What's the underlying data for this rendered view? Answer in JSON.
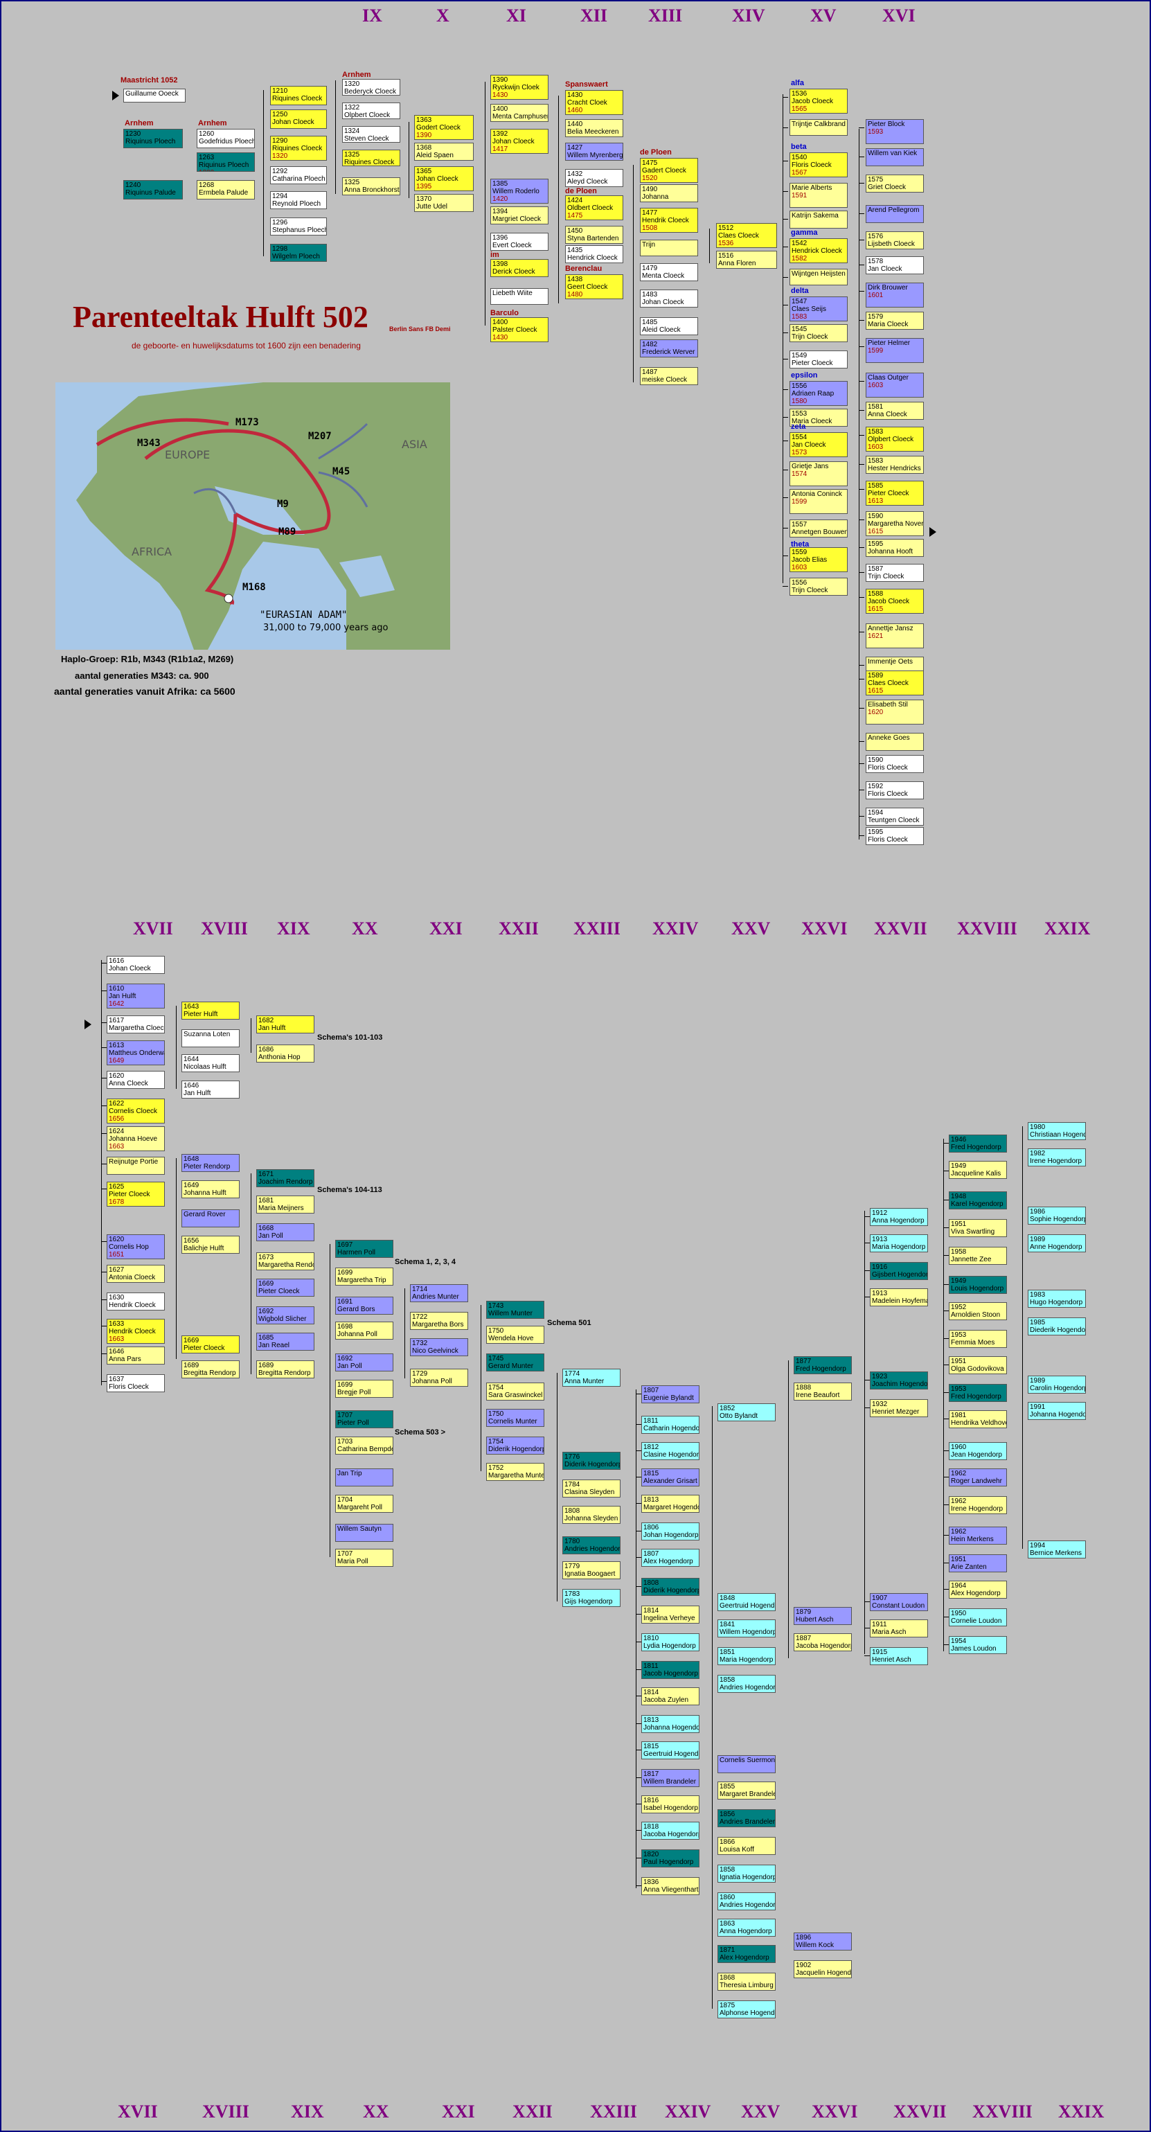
{
  "top_gens": [
    "IX",
    "X",
    "XI",
    "XII",
    "XIII",
    "XIV",
    "XV",
    "XVI"
  ],
  "mid_gens": [
    "XVII",
    "XVIII",
    "XIX",
    "XX",
    "XXI",
    "XXII",
    "XXIII",
    "XXIV",
    "XXV",
    "XXVI",
    "XXVII",
    "XXVIII",
    "XXIX"
  ],
  "bottom_gens": [
    "XVII",
    "XVIII",
    "XIX",
    "XX",
    "XXI",
    "XXII",
    "XXIII",
    "XXIV",
    "XXV",
    "XXVI",
    "XXVII",
    "XXVIII",
    "XXIX"
  ],
  "title": "Parenteeltak Hulft 502",
  "subtitle": "de geboorte- en huwelijksdatums tot 1600 zijn een benadering",
  "font_note": "Berlin Sans FB Demi",
  "map": {
    "labels": [
      "M173",
      "M343",
      "M207",
      "EUROPE",
      "ASIA",
      "M45",
      "M9",
      "M89",
      "AFRICA",
      "M168"
    ],
    "adam_title": "\"EURASIAN ADAM\"",
    "adam_sub": "31,000 to 79,000 years ago"
  },
  "info": {
    "haplo": "Haplo-Groep: R1b, M343 (R1b1a2, M269)",
    "gen_m343": "aantal generaties M343: ca. 900",
    "gen_africa": "aantal generaties vanuit Afrika: ca 5600"
  },
  "place_labels": [
    "Maastricht 1052",
    "Arnhem",
    "Arnhem",
    "Arnhem",
    "Spanswaert",
    "de Ploen",
    "de Ploen",
    "Berenclau",
    "Barculo",
    "im"
  ],
  "greek_labels": [
    "alfa",
    "beta",
    "gamma",
    "delta",
    "epsilon",
    "zeta",
    "theta"
  ],
  "schemas": [
    "Schema's 101-103",
    "Schema's 104-113",
    "Schema 1, 2, 3, 4",
    "Schema 501",
    "Schema 503 >"
  ],
  "top_boxes": [
    [
      "",
      "Guillaume Ooeck",
      "",
      ""
    ],
    [
      "1230",
      "Riquinus Ploech",
      "",
      ""
    ],
    [
      "1260",
      "Godefridus Ploech",
      "",
      ""
    ],
    [
      "1263",
      "Riquinus Ploech",
      "1290",
      ""
    ],
    [
      "1240",
      "Riquinus Palude",
      "",
      ""
    ],
    [
      "1268",
      "Ermbela Palude",
      "",
      ""
    ],
    [
      "1210",
      "Riquines Cloeck",
      "",
      ""
    ],
    [
      "1250",
      "Johan Cloeck",
      "",
      ""
    ],
    [
      "1290",
      "Riquines Cloeck",
      "1320",
      ""
    ],
    [
      "1292",
      "Catharina Ploech",
      "",
      ""
    ],
    [
      "1294",
      "Reynold Ploech",
      "",
      ""
    ],
    [
      "1296",
      "Stephanus Ploech",
      "",
      ""
    ],
    [
      "1298",
      "Wilgelm Ploech",
      "",
      ""
    ],
    [
      "1320",
      "Bederyck Cloeck",
      "",
      ""
    ],
    [
      "1322",
      "Olpbert Cloeck",
      "",
      ""
    ],
    [
      "1324",
      "Steven Cloeck",
      "",
      ""
    ],
    [
      "1325",
      "Riquines Cloeck",
      "",
      ""
    ],
    [
      "1325",
      "Anna Bronckhorst",
      "",
      ""
    ],
    [
      "1363",
      "Godert Cloeck",
      "1390",
      ""
    ],
    [
      "1368",
      "Aleid Spaen",
      "",
      ""
    ],
    [
      "1365",
      "Johan Cloeck",
      "1395",
      ""
    ],
    [
      "1370",
      "Jutte Udel",
      "",
      ""
    ],
    [
      "1390",
      "Ryckwijn Cloek",
      "1430",
      ""
    ],
    [
      "1400",
      "Menta Camphusen",
      "",
      ""
    ],
    [
      "1392",
      "Johan Cloeck",
      "1417",
      ""
    ],
    [
      "1385",
      "Willem Roderlo",
      "1420",
      ""
    ],
    [
      "1394",
      "Margriet Cloeck",
      "",
      ""
    ],
    [
      "1396",
      "Evert Cloeck",
      "",
      ""
    ],
    [
      "1398",
      "Derick Cloeck",
      "",
      ""
    ],
    [
      "",
      "Liebeth Wiite",
      "",
      ""
    ],
    [
      "1400",
      "Palster Cloeck",
      "1430",
      ""
    ],
    [
      "1430",
      "Cracht Cloek",
      "1460",
      ""
    ],
    [
      "1440",
      "Belia Meeckeren",
      "",
      ""
    ],
    [
      "1427",
      "Willem Myrenberg",
      "",
      ""
    ],
    [
      "1432",
      "Aleyd Cloeck",
      "",
      ""
    ],
    [
      "1424",
      "Oldbert Cloeck",
      "1475",
      ""
    ],
    [
      "1450",
      "Styna Bartenden",
      "",
      ""
    ],
    [
      "1435",
      "Hendrick Cloeck",
      "",
      ""
    ],
    [
      "1438",
      "Geert Cloeck",
      "1480",
      ""
    ],
    [
      "1475",
      "Gadert Cloeck",
      "1520",
      ""
    ],
    [
      "1490",
      "Johanna",
      "",
      ""
    ],
    [
      "1477",
      "Hendrik Cloeck",
      "1508",
      ""
    ],
    [
      "",
      "Trijn",
      "",
      ""
    ],
    [
      "1479",
      "Menta Cloeck",
      "",
      ""
    ],
    [
      "1483",
      "Johan Cloeck",
      "",
      ""
    ],
    [
      "1485",
      "Aleid Cloeck",
      "",
      ""
    ],
    [
      "1482",
      "Frederick Werver",
      "",
      ""
    ],
    [
      "1487",
      "meiske Cloeck",
      "",
      ""
    ],
    [
      "1512",
      "Claes Cloeck",
      "1536",
      ""
    ],
    [
      "1516",
      "Anna Floren",
      "",
      ""
    ],
    [
      "1536",
      "Jacob Cloeck",
      "1565",
      ""
    ],
    [
      "",
      "Trijntje Calkbrand",
      "",
      ""
    ],
    [
      "1540",
      "Floris Cloeck",
      "1567",
      ""
    ],
    [
      "",
      "Marie Alberts",
      "1591",
      ""
    ],
    [
      "",
      "Katrijn Sakema",
      "",
      ""
    ],
    [
      "1542",
      "Hendrick Cloeck",
      "1582",
      ""
    ],
    [
      "",
      "Wijntgen Heijsten",
      "",
      ""
    ],
    [
      "1547",
      "Claes Seijs",
      "1583",
      ""
    ],
    [
      "1545",
      "Trijn Cloeck",
      "",
      ""
    ],
    [
      "1549",
      "Pieter Cloeck",
      "",
      ""
    ],
    [
      "1556",
      "Adriaen Raap",
      "1580",
      ""
    ],
    [
      "1553",
      "Maria Cloeck",
      "",
      ""
    ],
    [
      "1554",
      "Jan Cloeck",
      "1573",
      ""
    ],
    [
      "",
      "Grietje Jans",
      "1574",
      ""
    ],
    [
      "",
      "Antonia Coninck",
      "1599",
      ""
    ],
    [
      "1557",
      "Annetgen Bouwens",
      "",
      ""
    ],
    [
      "1559",
      "Jacob Elias",
      "1603",
      ""
    ],
    [
      "1556",
      "Trijn Cloeck",
      "",
      ""
    ],
    [
      "",
      "Pieter Block",
      "1593",
      ""
    ],
    [
      "",
      "Willem van Kiek",
      "",
      ""
    ],
    [
      "1575",
      "Griet Cloeck",
      "",
      ""
    ],
    [
      "",
      "Arend Pellegrom",
      "",
      ""
    ],
    [
      "1576",
      "Lijsbeth Cloeck",
      "",
      ""
    ],
    [
      "1578",
      "Jan Cloeck",
      "",
      ""
    ],
    [
      "",
      "Dirk Brouwer",
      "1601",
      ""
    ],
    [
      "1579",
      "Maria Cloeck",
      "",
      ""
    ],
    [
      "",
      "Pieter Helmer",
      "1599",
      ""
    ],
    [
      "",
      "Claas Outger",
      "1603",
      ""
    ],
    [
      "1581",
      "Anna Cloeck",
      "",
      ""
    ],
    [
      "1583",
      "Olpbert Cloeck",
      "1603",
      ""
    ],
    [
      "1583",
      "Hester Hendricks",
      "",
      ""
    ],
    [
      "1585",
      "Pieter Cloeck",
      "1613",
      ""
    ],
    [
      "1590",
      "Margaretha Nover",
      "1615",
      ""
    ],
    [
      "1595",
      "Johanna Hooft",
      "",
      ""
    ],
    [
      "1587",
      "Trijn Cloeck",
      "",
      ""
    ],
    [
      "1588",
      "Jacob Cloeck",
      "1615",
      ""
    ],
    [
      "",
      "Annettje Jansz",
      "1621",
      ""
    ],
    [
      "",
      "Immentje Oets",
      "",
      ""
    ],
    [
      "1589",
      "Claes Cloeck",
      "1615",
      ""
    ],
    [
      "",
      "Elisabeth Stil",
      "1620",
      ""
    ],
    [
      "",
      "Anneke Goes",
      "",
      ""
    ],
    [
      "1590",
      "Floris Cloeck",
      "",
      ""
    ],
    [
      "1592",
      "Floris Cloeck",
      "",
      ""
    ],
    [
      "1594",
      "Teuntgen Cloeck",
      "",
      ""
    ],
    [
      "1595",
      "Floris Cloeck",
      "",
      ""
    ]
  ],
  "bottom_boxes": [
    [
      "1616",
      "Johan Cloeck",
      "",
      ""
    ],
    [
      "1610",
      "Jan Hulft",
      "1642",
      ""
    ],
    [
      "1617",
      "Margaretha Cloeck",
      "",
      ""
    ],
    [
      "1613",
      "Mattheus Onderwater",
      "1649",
      ""
    ],
    [
      "1620",
      "Anna Cloeck",
      "",
      ""
    ],
    [
      "1622",
      "Cornelis Cloeck",
      "1656",
      ""
    ],
    [
      "1624",
      "Johanna Hoeve",
      "1663",
      ""
    ],
    [
      "",
      "Reijnutge Portie",
      "",
      ""
    ],
    [
      "1625",
      "Pieter Cloeck",
      "1678",
      ""
    ],
    [
      "1620",
      "Cornelis Hop",
      "1651",
      ""
    ],
    [
      "1627",
      "Antonia Cloeck",
      "",
      ""
    ],
    [
      "1630",
      "Hendrik Cloeck",
      "",
      ""
    ],
    [
      "1633",
      "Hendrik Cloeck",
      "1663",
      ""
    ],
    [
      "1646",
      "Anna Pars",
      "",
      ""
    ],
    [
      "1637",
      "Floris Cloeck",
      "",
      ""
    ],
    [
      "1643",
      "Pieter Hulft",
      "",
      ""
    ],
    [
      "",
      "Suzanna Loten",
      "",
      ""
    ],
    [
      "1644",
      "Nicolaas Hulft",
      "",
      ""
    ],
    [
      "1646",
      "Jan Hulft",
      "",
      ""
    ],
    [
      "1648",
      "Pieter Rendorp",
      "",
      ""
    ],
    [
      "1649",
      "Johanna Hulft",
      "",
      ""
    ],
    [
      "",
      "Gerard Rover",
      "",
      ""
    ],
    [
      "1656",
      "Balichje Hulft",
      "",
      ""
    ],
    [
      "1669",
      "Pieter Cloeck",
      "",
      ""
    ],
    [
      "1689",
      "Bregitta Rendorp",
      "",
      ""
    ],
    [
      "1682",
      "Jan Hulft",
      "",
      ""
    ],
    [
      "1686",
      "Anthonia Hop",
      "",
      ""
    ],
    [
      "1671",
      "Joachim Rendorp",
      "",
      ""
    ],
    [
      "1681",
      "Maria Meijners",
      "",
      ""
    ],
    [
      "1668",
      "Jan Poll",
      "",
      ""
    ],
    [
      "1673",
      "Margaretha Rendorp",
      "",
      ""
    ],
    [
      "1669",
      "Pieter Cloeck",
      "",
      ""
    ],
    [
      "1692",
      "Wigbold Slicher",
      "",
      ""
    ],
    [
      "1685",
      "Jan Reael",
      "",
      ""
    ],
    [
      "1689",
      "Bregitta Rendorp",
      "",
      ""
    ],
    [
      "1697",
      "Harmen Poll",
      "",
      ""
    ],
    [
      "1699",
      "Margaretha Trip",
      "",
      ""
    ],
    [
      "1691",
      "Gerard Bors",
      "",
      ""
    ],
    [
      "1698",
      "Johanna Poll",
      "",
      ""
    ],
    [
      "1692",
      "Jan Poll",
      "",
      ""
    ],
    [
      "1699",
      "Bregje Poll",
      "",
      ""
    ],
    [
      "1707",
      "Pieter Poll",
      "",
      ""
    ],
    [
      "1703",
      "Catharina Bempde",
      "",
      ""
    ],
    [
      "",
      "Jan Trip",
      "",
      ""
    ],
    [
      "1704",
      "Margareht Poll",
      "",
      ""
    ],
    [
      "",
      "Willem Sautyn",
      "",
      ""
    ],
    [
      "1707",
      "Maria Poll",
      "",
      ""
    ],
    [
      "1714",
      "Andries Munter",
      "",
      ""
    ],
    [
      "1722",
      "Margaretha Bors",
      "",
      ""
    ],
    [
      "1732",
      "Nico Geelvinck",
      "",
      ""
    ],
    [
      "1729",
      "Johanna Poll",
      "",
      ""
    ],
    [
      "1743",
      "Willem Munter",
      "",
      ""
    ],
    [
      "1750",
      "Wendela Hove",
      "",
      ""
    ],
    [
      "1745",
      "Gerard Munter",
      "",
      ""
    ],
    [
      "1754",
      "Sara Graswinckel",
      "",
      ""
    ],
    [
      "1750",
      "Cornelis Munter",
      "",
      ""
    ],
    [
      "1754",
      "Diderik Hogendorp",
      "",
      ""
    ],
    [
      "1752",
      "Margaretha Munter",
      "",
      ""
    ],
    [
      "1774",
      "Anna Munter",
      "",
      ""
    ],
    [
      "1776",
      "Diderik Hogendorp",
      "",
      ""
    ],
    [
      "1784",
      "Clasina Sleyden",
      "",
      ""
    ],
    [
      "1808",
      "Johanna Sleyden",
      "",
      ""
    ],
    [
      "1780",
      "Andries Hogendorp",
      "",
      ""
    ],
    [
      "1779",
      "Ignatia Boogaert",
      "",
      ""
    ],
    [
      "1783",
      "Gijs Hogendorp",
      "",
      ""
    ],
    [
      "1807",
      "Eugenie Bylandt",
      "",
      ""
    ],
    [
      "1811",
      "Catharin Hogendorp",
      "",
      ""
    ],
    [
      "1812",
      "Clasine Hogendorp",
      "",
      ""
    ],
    [
      "1815",
      "Alexander Grisart",
      "",
      ""
    ],
    [
      "1813",
      "Margaret Hogendorp",
      "",
      ""
    ],
    [
      "1806",
      "Johan Hogendorp",
      "",
      ""
    ],
    [
      "1807",
      "Alex Hogendorp",
      "",
      ""
    ],
    [
      "1808",
      "Diderik Hogendorp",
      "",
      ""
    ],
    [
      "1814",
      "Ingelina Verheye",
      "",
      ""
    ],
    [
      "1810",
      "Lydia Hogendorp",
      "",
      ""
    ],
    [
      "1811",
      "Jacob Hogendorp",
      "",
      ""
    ],
    [
      "1814",
      "Jacoba Zuylen",
      "",
      ""
    ],
    [
      "1813",
      "Johanna Hogendorp",
      "",
      ""
    ],
    [
      "1815",
      "Geertruid Hogendorp",
      "",
      ""
    ],
    [
      "1817",
      "Willem Brandeler",
      "",
      ""
    ],
    [
      "1816",
      "Isabel Hogendorp",
      "",
      ""
    ],
    [
      "1818",
      "Jacoba Hogendorp",
      "",
      ""
    ],
    [
      "1820",
      "Paul Hogendorp",
      "",
      ""
    ],
    [
      "1836",
      "Anna Vliegenthart",
      "",
      ""
    ],
    [
      "1852",
      "Otto Bylandt",
      "",
      ""
    ],
    [
      "1848",
      "Geertruid Hogendorp",
      "",
      ""
    ],
    [
      "1841",
      "Willem Hogendorp",
      "",
      ""
    ],
    [
      "1851",
      "Maria Hogendorp",
      "",
      ""
    ],
    [
      "1858",
      "Andries Hogendorp",
      "",
      ""
    ],
    [
      "",
      "Cornelis Suermond",
      "",
      ""
    ],
    [
      "1855",
      "Margaret Brandeler",
      "",
      ""
    ],
    [
      "1856",
      "Andries Brandeler",
      "",
      ""
    ],
    [
      "1866",
      "Louisa Koff",
      "",
      ""
    ],
    [
      "1858",
      "Ignatia Hogendorp",
      "",
      ""
    ],
    [
      "1860",
      "Andries Hogendorp",
      "",
      ""
    ],
    [
      "1863",
      "Anna Hogendorp",
      "",
      ""
    ],
    [
      "1871",
      "Alex Hogendorp",
      "",
      ""
    ],
    [
      "1868",
      "Theresia Limburg",
      "",
      ""
    ],
    [
      "1875",
      "Alphonse Hogendorp",
      "",
      ""
    ],
    [
      "1877",
      "Fred Hogendorp",
      "",
      ""
    ],
    [
      "1888",
      "Irene Beaufort",
      "",
      ""
    ],
    [
      "1879",
      "Hubert Asch",
      "",
      ""
    ],
    [
      "1887",
      "Jacoba Hogendorp",
      "",
      ""
    ],
    [
      "1896",
      "Willem Kock",
      "",
      ""
    ],
    [
      "1902",
      "Jacquelin Hogendorp",
      "",
      ""
    ],
    [
      "1912",
      "Anna Hogendorp",
      "",
      ""
    ],
    [
      "1913",
      "Maria Hogendorp",
      "",
      ""
    ],
    [
      "1916",
      "Gijsbert Hogendorp",
      "",
      ""
    ],
    [
      "1913",
      "Madelein Hoyfema",
      "",
      ""
    ],
    [
      "1923",
      "Joachim Hogendorp",
      "",
      ""
    ],
    [
      "1932",
      "Henriet Mezger",
      "",
      ""
    ],
    [
      "1907",
      "Constant Loudon",
      "",
      ""
    ],
    [
      "1911",
      "Maria Asch",
      "",
      ""
    ],
    [
      "1915",
      "Henriet Asch",
      "",
      ""
    ],
    [
      "1946",
      "Fred Hogendorp",
      "",
      ""
    ],
    [
      "1949",
      "Jacqueline Kalis",
      "",
      ""
    ],
    [
      "1948",
      "Karel Hogendorp",
      "",
      ""
    ],
    [
      "1951",
      "Viva Swartling",
      "",
      ""
    ],
    [
      "1958",
      "Jannette Zee",
      "",
      ""
    ],
    [
      "1949",
      "Louis Hogendorp",
      "",
      ""
    ],
    [
      "1952",
      "Arnoldien Stoon",
      "",
      ""
    ],
    [
      "1953",
      "Femmia Moes",
      "",
      ""
    ],
    [
      "1951",
      "Olga Godovikova",
      "",
      ""
    ],
    [
      "1953",
      "Fred Hogendorp",
      "",
      ""
    ],
    [
      "1981",
      "Hendrika Veldhoven",
      "",
      ""
    ],
    [
      "1960",
      "Jean Hogendorp",
      "",
      ""
    ],
    [
      "1962",
      "Roger Landwehr",
      "",
      ""
    ],
    [
      "1962",
      "Irene Hogendorp",
      "",
      ""
    ],
    [
      "1962",
      "Hein Merkens",
      "",
      ""
    ],
    [
      "1951",
      "Arie Zanten",
      "",
      ""
    ],
    [
      "1964",
      "Alex Hogendorp",
      "",
      ""
    ],
    [
      "1950",
      "Cornelie Loudon",
      "",
      ""
    ],
    [
      "1954",
      "James Loudon",
      "",
      ""
    ],
    [
      "1980",
      "Christiaan Hogendorp",
      "",
      ""
    ],
    [
      "1982",
      "Irene Hogendorp",
      "",
      ""
    ],
    [
      "1986",
      "Sophie Hogendorp",
      "",
      ""
    ],
    [
      "1989",
      "Anne Hogendorp",
      "",
      ""
    ],
    [
      "1983",
      "Hugo Hogendorp",
      "",
      ""
    ],
    [
      "1985",
      "Diederik Hogendorp",
      "",
      ""
    ],
    [
      "1989",
      "Carolin Hogendorp",
      "",
      ""
    ],
    [
      "1991",
      "Johanna Hogendorp",
      "",
      ""
    ],
    [
      "1994",
      "Bernice Merkens",
      "",
      ""
    ]
  ]
}
